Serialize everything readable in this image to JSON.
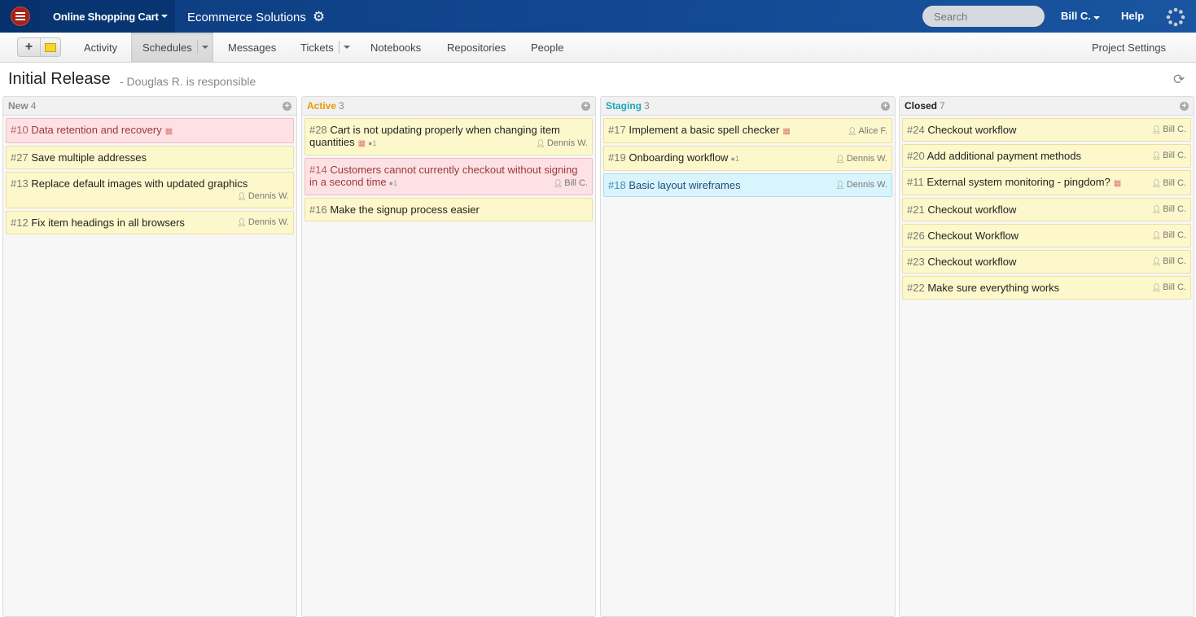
{
  "topbar": {
    "project": "Online Shopping Cart",
    "company": "Ecommerce Solutions",
    "search_placeholder": "Search",
    "user": "Bill C.",
    "help": "Help"
  },
  "subnav": {
    "items": [
      "Activity",
      "Schedules",
      "Messages",
      "Tickets",
      "Notebooks",
      "Repositories",
      "People"
    ],
    "active": "Schedules",
    "project_settings": "Project Settings"
  },
  "page": {
    "title": "Initial Release",
    "responsible": "- Douglas R. is responsible"
  },
  "colors": {
    "new": "#888888",
    "active": "#e69a00",
    "staging": "#1aa8b8",
    "closed": "#222222"
  },
  "columns": [
    {
      "name": "New",
      "count": "4",
      "cards": [
        {
          "num": "#10",
          "title": "Data retention and recovery",
          "color": "pink",
          "calendar": true
        },
        {
          "num": "#27",
          "title": "Save multiple addresses",
          "color": "yellow"
        },
        {
          "num": "#13",
          "title": "Replace default images with updated graphics",
          "color": "yellow",
          "assignee": "Dennis W.",
          "wrap": true
        },
        {
          "num": "#12",
          "title": "Fix item headings in all browsers",
          "color": "yellow",
          "assignee": "Dennis W."
        }
      ]
    },
    {
      "name": "Active",
      "count": "3",
      "cards": [
        {
          "num": "#28",
          "title": "Cart is not updating properly when changing item quantities",
          "color": "yellow",
          "calendar": true,
          "comments": "1",
          "assignee": "Dennis W."
        },
        {
          "num": "#14",
          "title": "Customers cannot currently checkout without signing in a second time",
          "color": "pink",
          "comments": "1",
          "assignee": "Bill C."
        },
        {
          "num": "#16",
          "title": "Make the signup process easier",
          "color": "yellow"
        }
      ]
    },
    {
      "name": "Staging",
      "count": "3",
      "cards": [
        {
          "num": "#17",
          "title": "Implement a basic spell checker",
          "color": "yellow",
          "calendar": true,
          "assignee": "Alice F."
        },
        {
          "num": "#19",
          "title": "Onboarding workflow",
          "color": "yellow",
          "comments": "1",
          "assignee": "Dennis W."
        },
        {
          "num": "#18",
          "title": "Basic layout wireframes",
          "color": "blue",
          "assignee": "Dennis W."
        }
      ]
    },
    {
      "name": "Closed",
      "count": "7",
      "cards": [
        {
          "num": "#24",
          "title": "Checkout workflow",
          "color": "yellow",
          "assignee": "Bill C."
        },
        {
          "num": "#20",
          "title": "Add additional payment methods",
          "color": "yellow",
          "assignee": "Bill C."
        },
        {
          "num": "#11",
          "title": "External system monitoring - pingdom?",
          "color": "yellow",
          "calendar": true,
          "assignee": "Bill C."
        },
        {
          "num": "#21",
          "title": "Checkout workflow",
          "color": "yellow",
          "assignee": "Bill C."
        },
        {
          "num": "#26",
          "title": "Checkout Workflow",
          "color": "yellow",
          "assignee": "Bill C."
        },
        {
          "num": "#23",
          "title": "Checkout workflow",
          "color": "yellow",
          "assignee": "Bill C."
        },
        {
          "num": "#22",
          "title": "Make sure everything works",
          "color": "yellow",
          "assignee": "Bill C."
        }
      ]
    }
  ]
}
